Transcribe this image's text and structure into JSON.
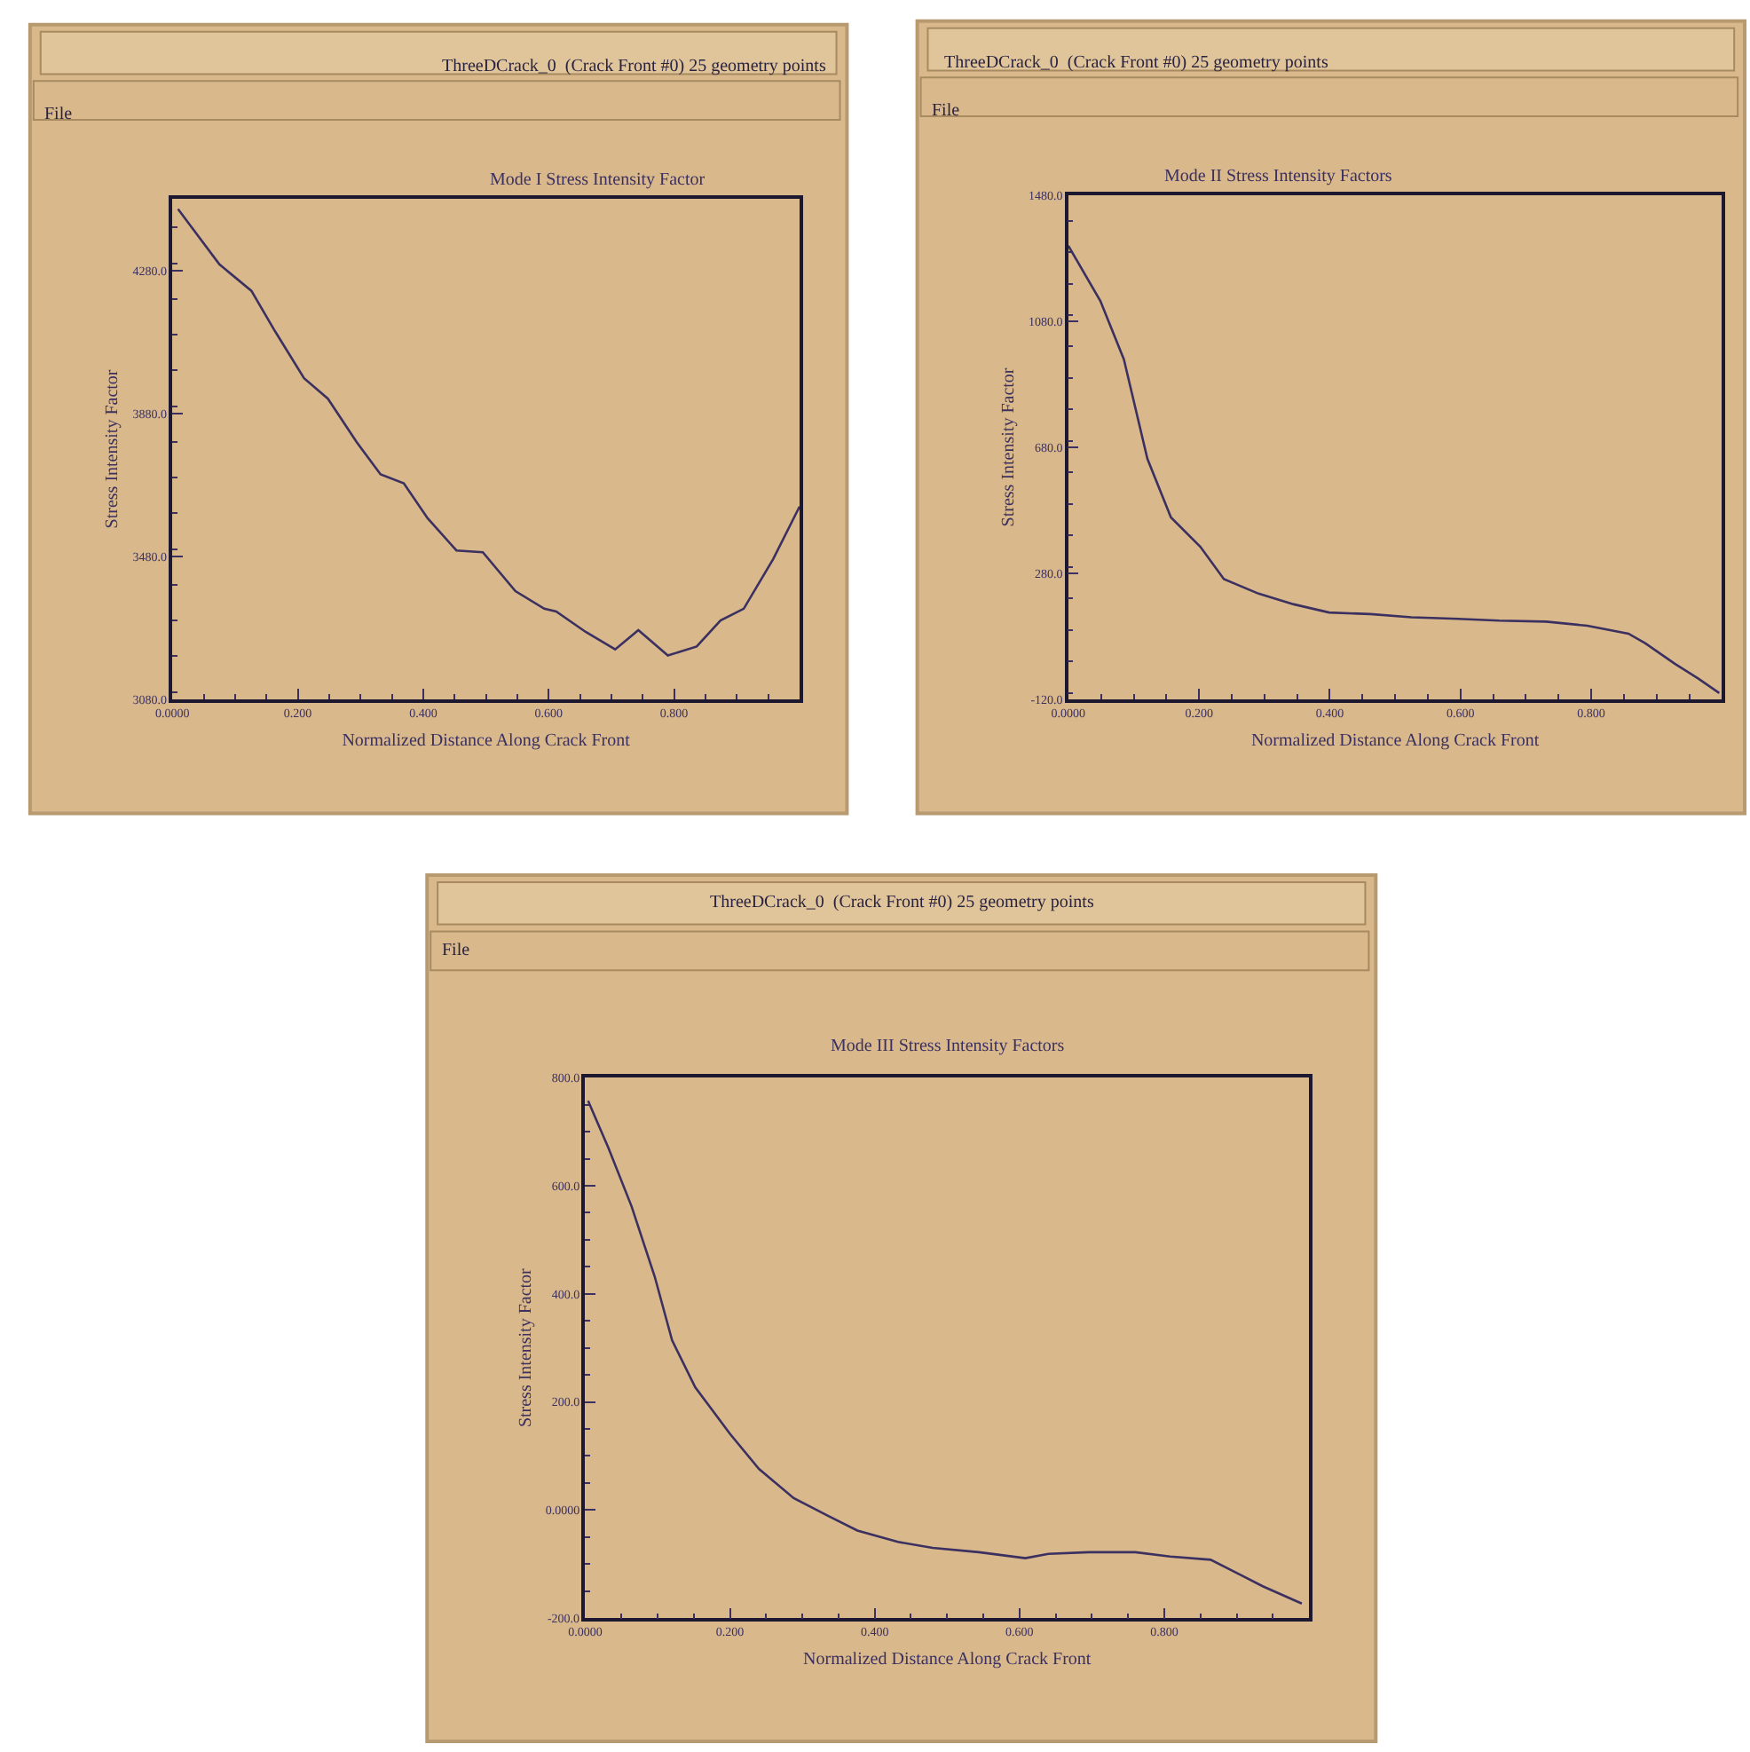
{
  "chart_data": [
    {
      "type": "line",
      "title": "Mode I Stress Intensity Factor",
      "xlabel": "Normalized Distance Along Crack Front",
      "ylabel": "Stress Intensity Factor",
      "annotations": [
        "ThreeDCrack_0  (Crack Front #0) 25 geometry points",
        "File"
      ],
      "xlim": [
        0,
        1
      ],
      "ylim": [
        3080,
        4480
      ],
      "xticks": [
        {
          "value": 0,
          "label": "0.0000"
        },
        {
          "value": 0.2,
          "label": "0.200"
        },
        {
          "value": 0.4,
          "label": "0.400"
        },
        {
          "value": 0.6,
          "label": "0.600"
        },
        {
          "value": 0.8,
          "label": "0.800"
        }
      ],
      "yticks": [
        {
          "value": 3080,
          "label": "3080.0"
        },
        {
          "value": 3480,
          "label": "3480.0"
        },
        {
          "value": 3880,
          "label": "3880.0"
        },
        {
          "value": 4280,
          "label": "4280.0"
        }
      ],
      "series": [
        {
          "color": "#3b3060",
          "x": [
            0.009,
            0.075,
            0.126,
            0.164,
            0.21,
            0.248,
            0.294,
            0.332,
            0.369,
            0.407,
            0.453,
            0.495,
            0.547,
            0.593,
            0.612,
            0.659,
            0.706,
            0.743,
            0.79,
            0.836,
            0.874,
            0.911,
            0.958,
            1.0
          ],
          "values": [
            4452,
            4297,
            4223,
            4109,
            3978,
            3921,
            3799,
            3709,
            3684,
            3586,
            3496,
            3491,
            3382,
            3333,
            3325,
            3268,
            3219,
            3273,
            3202,
            3227,
            3300,
            3333,
            3472,
            3619
          ]
        }
      ]
    },
    {
      "type": "line",
      "title": "Mode II Stress Intensity Factors",
      "xlabel": "Normalized Distance Along Crack Front",
      "ylabel": "Stress Intensity Factor",
      "annotations": [
        "ThreeDCrack_0  (Crack Front #0) 25 geometry points",
        "File"
      ],
      "xlim": [
        0,
        1
      ],
      "ylim": [
        -120,
        1480
      ],
      "xticks": [
        {
          "value": 0,
          "label": "0.0000"
        },
        {
          "value": 0.2,
          "label": "0.200"
        },
        {
          "value": 0.4,
          "label": "0.400"
        },
        {
          "value": 0.6,
          "label": "0.600"
        },
        {
          "value": 0.8,
          "label": "0.800"
        }
      ],
      "yticks": [
        {
          "value": -120,
          "label": "-120.0"
        },
        {
          "value": 280,
          "label": "280.0"
        },
        {
          "value": 680,
          "label": "680.0"
        },
        {
          "value": 1080,
          "label": "1080.0"
        },
        {
          "value": 1480,
          "label": "1480.0"
        }
      ],
      "series": [
        {
          "color": "#3b3060",
          "x": [
            0.0,
            0.049,
            0.085,
            0.121,
            0.157,
            0.202,
            0.238,
            0.291,
            0.345,
            0.399,
            0.462,
            0.525,
            0.596,
            0.659,
            0.731,
            0.794,
            0.857,
            0.883,
            0.928,
            0.964,
            0.996
          ],
          "values": [
            1320,
            1145,
            959,
            643,
            457,
            364,
            261,
            215,
            181,
            155,
            150,
            140,
            135,
            129,
            126,
            113,
            88,
            57,
            -8,
            -55,
            -101
          ]
        }
      ]
    },
    {
      "type": "line",
      "title": "Mode III Stress Intensity Factors",
      "xlabel": "Normalized Distance Along Crack Front",
      "ylabel": "Stress Intensity Factor",
      "annotations": [
        "ThreeDCrack_0  (Crack Front #0) 25 geometry points",
        "File"
      ],
      "xlim": [
        0,
        1
      ],
      "ylim": [
        -200,
        800
      ],
      "xticks": [
        {
          "value": 0,
          "label": "0.0000"
        },
        {
          "value": 0.2,
          "label": "0.200"
        },
        {
          "value": 0.4,
          "label": "0.400"
        },
        {
          "value": 0.6,
          "label": "0.600"
        },
        {
          "value": 0.8,
          "label": "0.800"
        }
      ],
      "yticks": [
        {
          "value": -200,
          "label": "-200.0"
        },
        {
          "value": 0,
          "label": "0.0000"
        },
        {
          "value": 200,
          "label": "200.0"
        },
        {
          "value": 400,
          "label": "400.0"
        },
        {
          "value": 600,
          "label": "600.0"
        },
        {
          "value": 800,
          "label": "800.0"
        }
      ],
      "series": [
        {
          "color": "#3b3060",
          "x": [
            0.004,
            0.032,
            0.064,
            0.096,
            0.12,
            0.152,
            0.2,
            0.24,
            0.288,
            0.336,
            0.376,
            0.432,
            0.48,
            0.544,
            0.608,
            0.64,
            0.696,
            0.76,
            0.808,
            0.864,
            0.904,
            0.936,
            0.99
          ],
          "values": [
            757,
            670,
            562,
            432,
            314,
            227,
            141,
            76,
            22,
            -11,
            -38,
            -59,
            -70,
            -78,
            -89,
            -81,
            -78,
            -78,
            -86,
            -92,
            -119,
            -141,
            -173
          ]
        }
      ]
    }
  ]
}
